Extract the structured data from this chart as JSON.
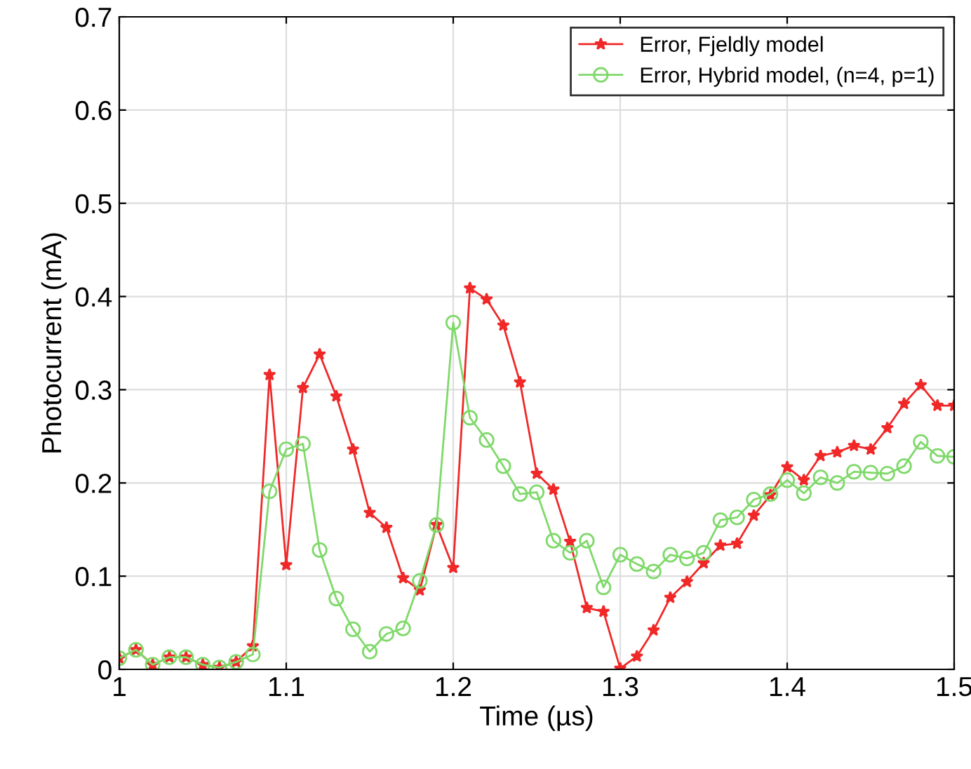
{
  "chart_data": {
    "type": "line",
    "xlabel": "Time (µs)",
    "ylabel": "Photocurrent (mA)",
    "x": [
      1.0,
      1.01,
      1.02,
      1.03,
      1.04,
      1.05,
      1.06,
      1.07,
      1.08,
      1.09,
      1.1,
      1.11,
      1.12,
      1.13,
      1.14,
      1.15,
      1.16,
      1.17,
      1.18,
      1.19,
      1.2,
      1.21,
      1.22,
      1.23,
      1.24,
      1.25,
      1.26,
      1.27,
      1.28,
      1.29,
      1.3,
      1.31,
      1.32,
      1.33,
      1.34,
      1.35,
      1.36,
      1.37,
      1.38,
      1.39,
      1.4,
      1.41,
      1.42,
      1.43,
      1.44,
      1.45,
      1.46,
      1.47,
      1.48,
      1.49,
      1.5
    ],
    "series": [
      {
        "name": "Error, Fjeldly model",
        "color": "#f02828",
        "marker": "star",
        "values": [
          0.012,
          0.021,
          0.005,
          0.013,
          0.013,
          0.005,
          0.002,
          0.008,
          0.025,
          0.316,
          0.112,
          0.302,
          0.338,
          0.293,
          0.236,
          0.168,
          0.152,
          0.098,
          0.085,
          0.155,
          0.109,
          0.409,
          0.397,
          0.369,
          0.308,
          0.21,
          0.193,
          0.137,
          0.066,
          0.062,
          0.001,
          0.014,
          0.042,
          0.077,
          0.094,
          0.114,
          0.133,
          0.135,
          0.165,
          0.187,
          0.217,
          0.203,
          0.229,
          0.233,
          0.24,
          0.236,
          0.259,
          0.285,
          0.305,
          0.283,
          0.283
        ]
      },
      {
        "name": "Error, Hybrid model, (n=4, p=1)",
        "color": "#7fd96a",
        "marker": "circle",
        "values": [
          0.012,
          0.021,
          0.005,
          0.013,
          0.013,
          0.005,
          0.002,
          0.008,
          0.016,
          0.191,
          0.236,
          0.242,
          0.128,
          0.076,
          0.043,
          0.019,
          0.038,
          0.044,
          0.095,
          0.155,
          0.372,
          0.27,
          0.246,
          0.218,
          0.188,
          0.19,
          0.138,
          0.125,
          0.138,
          0.088,
          0.123,
          0.113,
          0.105,
          0.123,
          0.119,
          0.125,
          0.16,
          0.163,
          0.182,
          0.188,
          0.203,
          0.189,
          0.206,
          0.2,
          0.212,
          0.211,
          0.21,
          0.218,
          0.244,
          0.229,
          0.228
        ]
      }
    ],
    "xlim": [
      1,
      1.5
    ],
    "xticks": [
      1,
      1.1,
      1.2,
      1.3,
      1.4,
      1.5
    ],
    "ylim": [
      0,
      0.7
    ],
    "yticks": [
      0,
      0.1,
      0.2,
      0.3,
      0.4,
      0.5,
      0.6,
      0.7
    ],
    "grid": true,
    "legend": "top right",
    "line_style": "solid"
  }
}
